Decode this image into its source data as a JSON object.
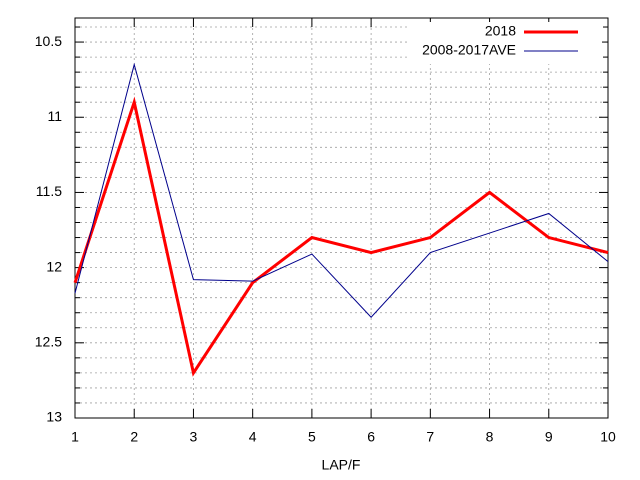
{
  "chart_data": {
    "type": "line",
    "x_label": "LAP/F",
    "x": [
      1,
      2,
      3,
      4,
      5,
      6,
      7,
      8,
      9,
      10
    ],
    "series": [
      {
        "name": "2018",
        "color": "#ff0000",
        "values": [
          12.1,
          10.9,
          12.7,
          12.1,
          11.8,
          11.9,
          11.8,
          11.5,
          11.8,
          11.9
        ]
      },
      {
        "name": "2008-2017AVE",
        "color": "#00008b",
        "values": [
          12.17,
          10.65,
          12.08,
          12.09,
          11.91,
          12.33,
          11.9,
          11.77,
          11.64,
          11.96
        ]
      }
    ],
    "xlim": [
      1,
      10
    ],
    "xticks": [
      1,
      2,
      3,
      4,
      5,
      6,
      7,
      8,
      9,
      10
    ],
    "ylim": [
      10.34,
      13
    ],
    "y_inverted": true,
    "yticks": [
      10.5,
      11,
      11.5,
      12,
      12.5,
      13
    ],
    "yminorticks": [
      10.4,
      10.6,
      10.7,
      10.8,
      10.9,
      11.1,
      11.2,
      11.3,
      11.4,
      11.6,
      11.7,
      11.8,
      11.9,
      12.1,
      12.2,
      12.3,
      12.4,
      12.6,
      12.7,
      12.8,
      12.9
    ],
    "grid": true,
    "legend": "top-right"
  }
}
